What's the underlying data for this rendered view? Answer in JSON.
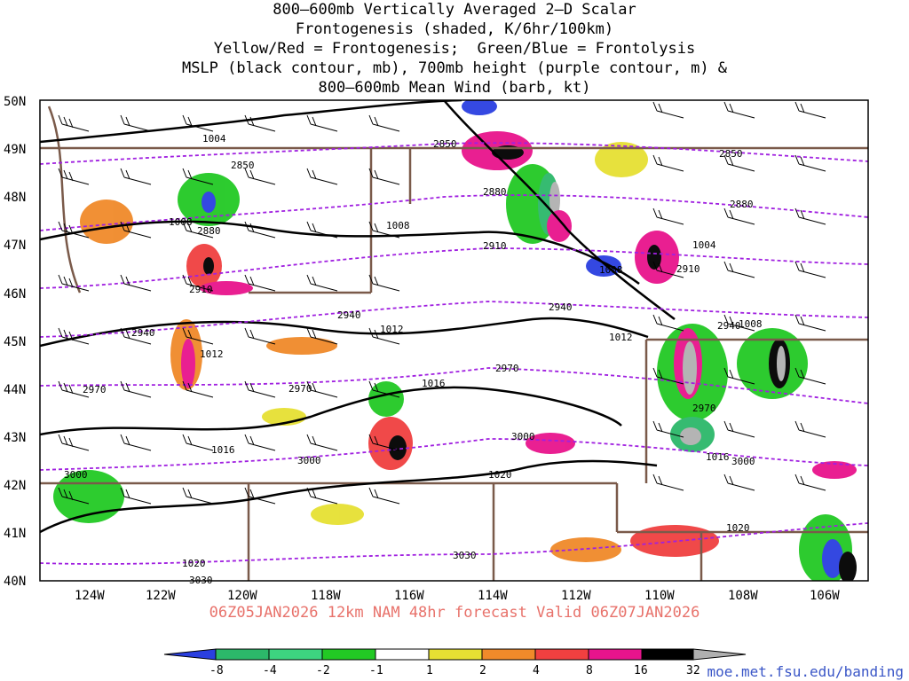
{
  "title": {
    "line1": "800–600mb Vertically Averaged 2–D Scalar",
    "line2": "Frontogenesis (shaded, K/6hr/100km)",
    "line3": "Yellow/Red = Frontogenesis;  Green/Blue = Frontolysis",
    "line4": "MSLP (black contour, mb), 700mb height (purple contour, m) &",
    "line5": "800–600mb Mean Wind (barb, kt)"
  },
  "forecast_label": "06Z05JAN2026 12km NAM 48hr forecast Valid 06Z07JAN2026",
  "source_url": "moe.met.fsu.edu/banding",
  "axes": {
    "lat_labels": [
      "50N",
      "49N",
      "48N",
      "47N",
      "46N",
      "45N",
      "44N",
      "43N",
      "42N",
      "41N",
      "40N"
    ],
    "lon_labels": [
      "124W",
      "122W",
      "120W",
      "118W",
      "116W",
      "114W",
      "112W",
      "110W",
      "108W",
      "106W"
    ]
  },
  "colorbar": {
    "labels": [
      "-8",
      "-4",
      "-2",
      "-1",
      "1",
      "2",
      "4",
      "8",
      "16",
      "32"
    ],
    "colors": [
      "#2a3fe0",
      "#2cb86a",
      "#3dd480",
      "#22c924",
      "#ffffff",
      "#e6e033",
      "#f08a2a",
      "#f04040",
      "#e8148c",
      "#000000",
      "#b0b0b0"
    ]
  },
  "mslp_labels": [
    "1004",
    "1008",
    "1008",
    "1008",
    "1004",
    "1012",
    "1012",
    "1012",
    "1016",
    "1016",
    "1016",
    "1020",
    "1020",
    "1020",
    "1008"
  ],
  "height_labels": [
    "2850",
    "2850",
    "2850",
    "2880",
    "2880",
    "2880",
    "2910",
    "2910",
    "2910",
    "2940",
    "2940",
    "2940",
    "2940",
    "2970",
    "2970",
    "2970",
    "2970",
    "3000",
    "3000",
    "3000",
    "3000",
    "3030",
    "3030"
  ]
}
